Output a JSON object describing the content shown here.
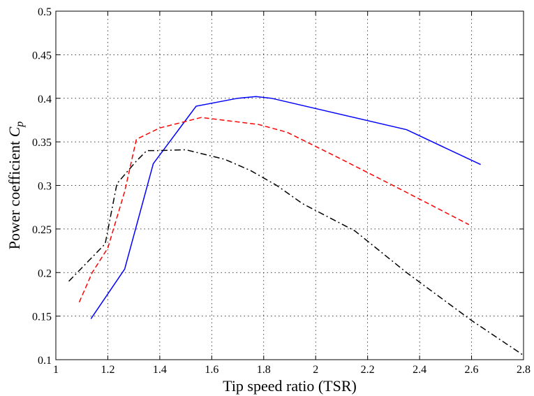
{
  "chart_data": {
    "type": "line",
    "title": "",
    "xlabel": "Tip speed ratio (TSR)",
    "ylabel_main": "Power coefficient ",
    "ylabel_symbol": "C",
    "ylabel_subscript": "p",
    "xlim": [
      1,
      2.8
    ],
    "ylim": [
      0.1,
      0.5
    ],
    "xticks": [
      1,
      1.2,
      1.4,
      1.6,
      1.8,
      2,
      2.2,
      2.4,
      2.6,
      2.8
    ],
    "xtick_labels": [
      "1",
      "1.2",
      "1.4",
      "1.6",
      "1.8",
      "2",
      "2.2",
      "2.4",
      "2.6",
      "2.8"
    ],
    "yticks": [
      0.1,
      0.15,
      0.2,
      0.25,
      0.3,
      0.35,
      0.4,
      0.45,
      0.5
    ],
    "ytick_labels": [
      "0.1",
      "0.15",
      "0.2",
      "0.25",
      "0.3",
      "0.35",
      "0.4",
      "0.45",
      "0.5"
    ],
    "grid": true,
    "series": [
      {
        "color": "#0000ff",
        "style": "solid",
        "x": [
          1.135,
          1.265,
          1.375,
          1.54,
          1.7,
          1.77,
          1.83,
          2.35,
          2.635
        ],
        "y": [
          0.147,
          0.204,
          0.325,
          0.391,
          0.4,
          0.402,
          0.4,
          0.364,
          0.324
        ]
      },
      {
        "color": "#ff0000",
        "style": "dashed",
        "x": [
          1.09,
          1.14,
          1.2,
          1.265,
          1.31,
          1.4,
          1.56,
          1.78,
          1.89,
          2.1,
          2.35,
          2.59
        ],
        "y": [
          0.166,
          0.2,
          0.228,
          0.293,
          0.353,
          0.366,
          0.378,
          0.37,
          0.361,
          0.33,
          0.292,
          0.255
        ]
      },
      {
        "color": "#000000",
        "style": "dashdot",
        "x": [
          1.05,
          1.19,
          1.235,
          1.31,
          1.35,
          1.4,
          1.5,
          1.65,
          1.75,
          1.85,
          1.95,
          2.15,
          2.35,
          2.6,
          2.8
        ],
        "y": [
          0.19,
          0.233,
          0.302,
          0.328,
          0.34,
          0.34,
          0.341,
          0.33,
          0.317,
          0.3,
          0.279,
          0.248,
          0.2,
          0.145,
          0.105
        ]
      }
    ]
  }
}
